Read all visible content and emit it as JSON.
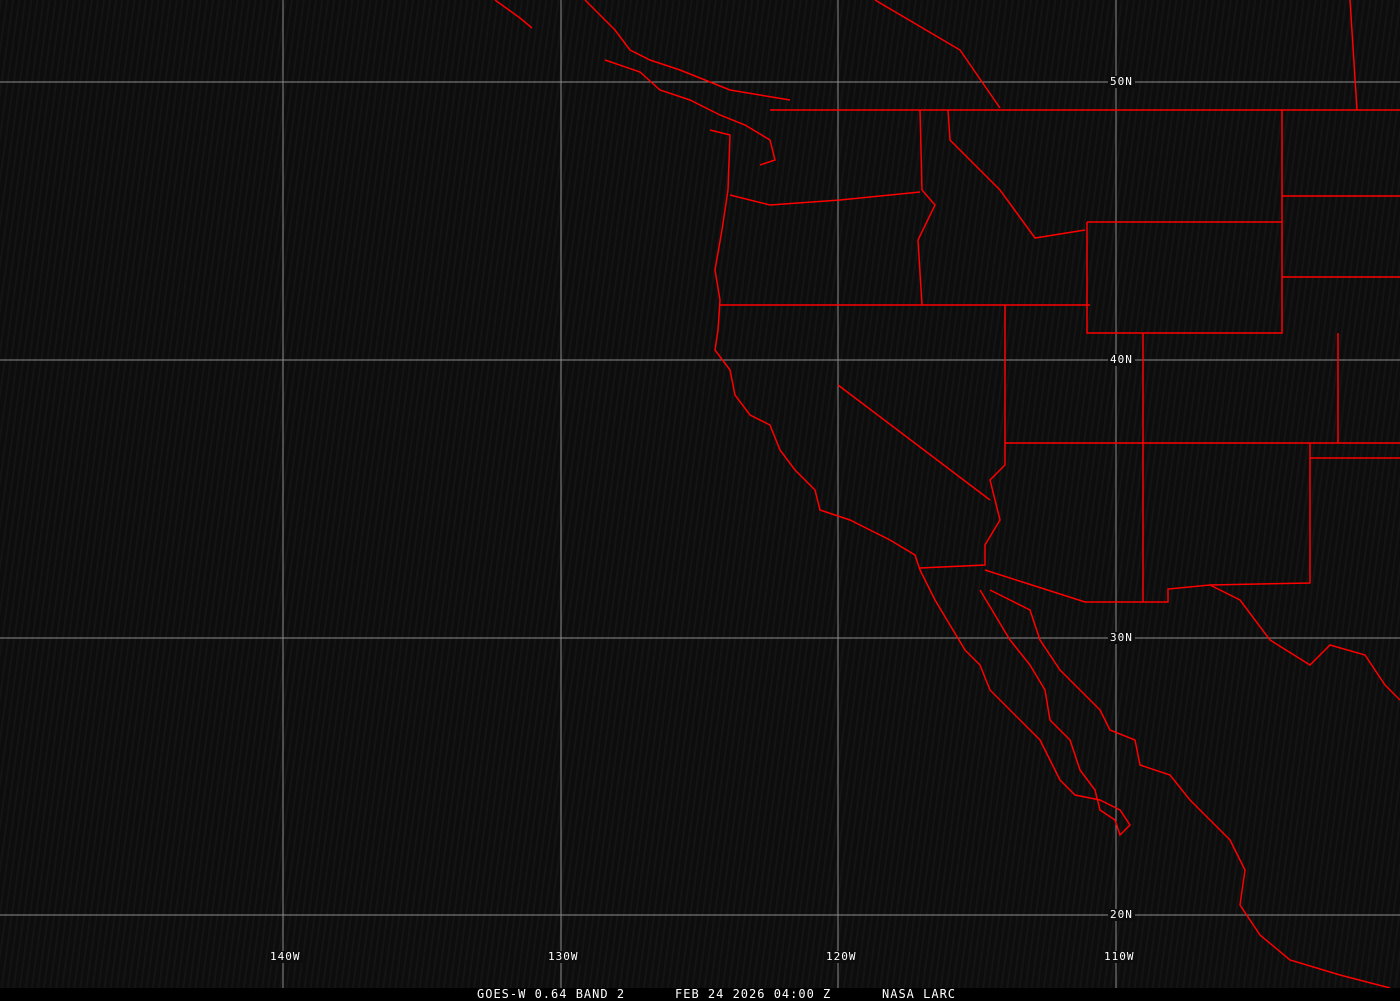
{
  "map": {
    "colors": {
      "grid": "#8c8c8c",
      "borders": "#ff0000",
      "background": "#0d0d0d"
    },
    "latitude_labels": [
      "50N",
      "40N",
      "30N",
      "20N"
    ],
    "longitude_labels": [
      "140W",
      "130W",
      "120W",
      "110W"
    ]
  },
  "footer": {
    "product": "GOES-W 0.64 BAND 2",
    "datetime": "FEB 24 2026 04:00 Z",
    "source": "NASA LARC"
  }
}
